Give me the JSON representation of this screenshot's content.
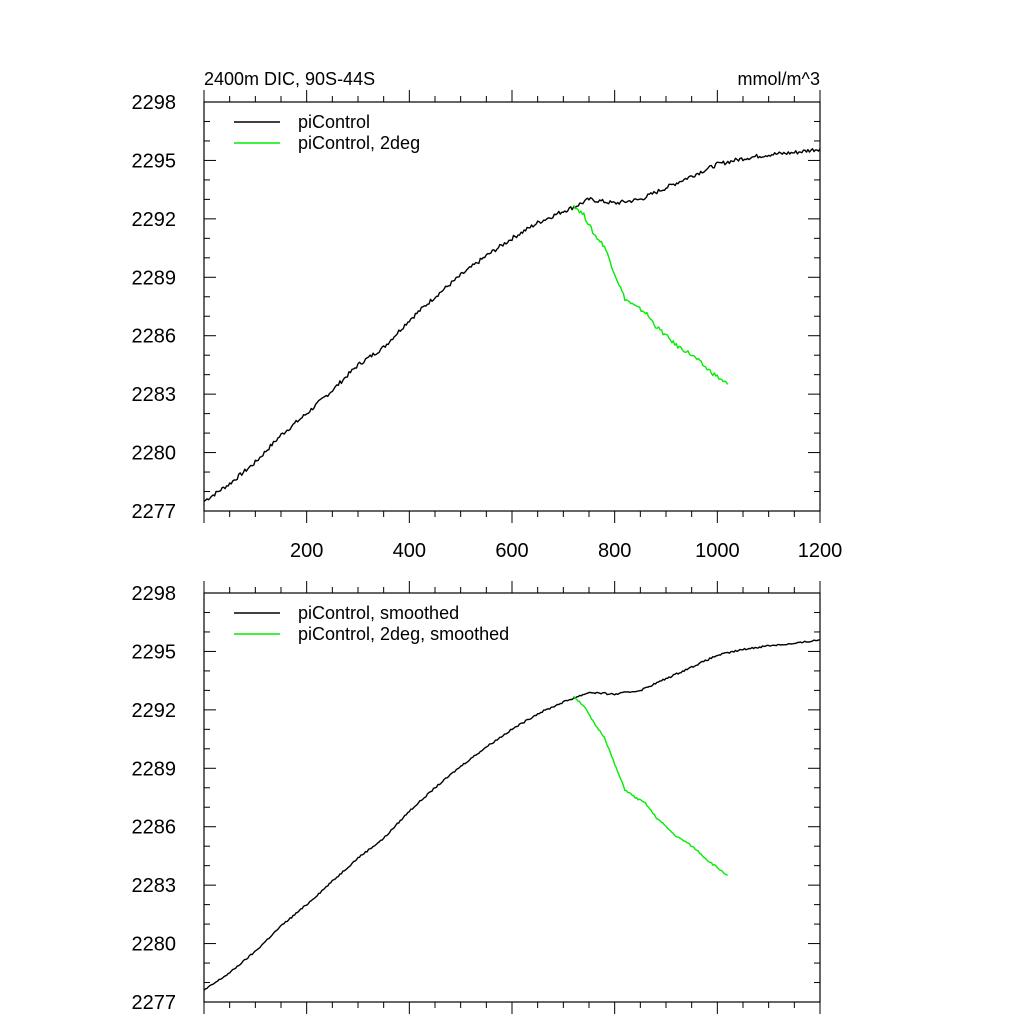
{
  "figure": {
    "title_left": "2400m DIC, 90S-44S",
    "title_right": "mmol/m^3"
  },
  "chart_data": [
    {
      "type": "line",
      "title": "2400m DIC, 90S-44S",
      "units": "mmol/m^3",
      "xlim": [
        0,
        1200
      ],
      "ylim": [
        2277,
        2298
      ],
      "x_ticks": [
        200,
        400,
        600,
        800,
        1000,
        1200
      ],
      "y_ticks": [
        2277,
        2280,
        2283,
        2286,
        2289,
        2292,
        2295,
        2298
      ],
      "legend_position": "top-left",
      "series": [
        {
          "name": "piControl",
          "color": "#000000",
          "x": [
            0,
            50,
            100,
            150,
            200,
            250,
            300,
            350,
            400,
            450,
            500,
            550,
            600,
            650,
            700,
            720,
            750,
            800,
            850,
            900,
            950,
            1000,
            1050,
            1100,
            1150,
            1200
          ],
          "y": [
            2277.5,
            2278.4,
            2279.5,
            2280.9,
            2282.0,
            2283.2,
            2284.5,
            2285.4,
            2286.8,
            2288.0,
            2289.1,
            2290.1,
            2291.0,
            2291.8,
            2292.4,
            2292.6,
            2293.0,
            2292.8,
            2293.0,
            2293.6,
            2294.2,
            2294.8,
            2295.1,
            2295.3,
            2295.4,
            2295.6
          ]
        },
        {
          "name": "piControl, 2deg",
          "color": "#00ee00",
          "x": [
            720,
            740,
            760,
            780,
            800,
            820,
            840,
            860,
            880,
            900,
            920,
            940,
            960,
            980,
            1000,
            1020
          ],
          "y": [
            2292.7,
            2292.2,
            2291.2,
            2290.6,
            2289.2,
            2287.9,
            2287.5,
            2287.2,
            2286.5,
            2286.0,
            2285.5,
            2285.2,
            2284.8,
            2284.3,
            2283.9,
            2283.5
          ]
        }
      ]
    },
    {
      "type": "line",
      "xlim": [
        0,
        1200
      ],
      "ylim": [
        2277,
        2298
      ],
      "y_ticks": [
        2277,
        2280,
        2283,
        2286,
        2289,
        2292,
        2295,
        2298
      ],
      "legend_position": "top-left",
      "series": [
        {
          "name": "piControl, smoothed",
          "color": "#000000",
          "x": [
            0,
            50,
            100,
            150,
            200,
            250,
            300,
            350,
            400,
            450,
            500,
            550,
            600,
            650,
            700,
            720,
            750,
            800,
            850,
            900,
            950,
            1000,
            1050,
            1100,
            1150,
            1200
          ],
          "y": [
            2277.6,
            2278.5,
            2279.6,
            2280.9,
            2282.0,
            2283.2,
            2284.4,
            2285.4,
            2286.8,
            2288.0,
            2289.1,
            2290.1,
            2291.0,
            2291.8,
            2292.4,
            2292.6,
            2292.9,
            2292.8,
            2293.0,
            2293.6,
            2294.2,
            2294.8,
            2295.1,
            2295.3,
            2295.4,
            2295.6
          ]
        },
        {
          "name": "piControl, 2deg, smoothed",
          "color": "#00ee00",
          "x": [
            720,
            740,
            760,
            780,
            800,
            820,
            840,
            860,
            880,
            900,
            920,
            940,
            960,
            980,
            1000,
            1020
          ],
          "y": [
            2292.7,
            2292.2,
            2291.3,
            2290.6,
            2289.2,
            2287.9,
            2287.5,
            2287.2,
            2286.5,
            2286.0,
            2285.5,
            2285.2,
            2284.8,
            2284.3,
            2283.9,
            2283.5
          ]
        }
      ]
    }
  ]
}
